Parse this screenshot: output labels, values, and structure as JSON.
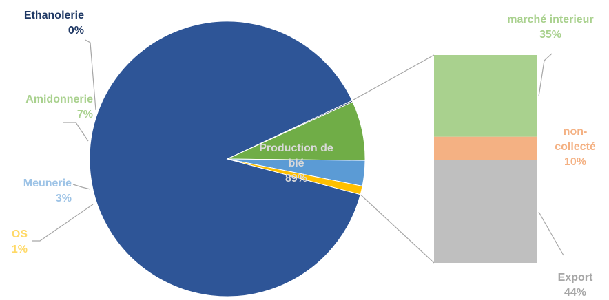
{
  "chart_data": {
    "type": "bar-of-pie",
    "title": "",
    "colors": {
      "pie_main": "#2E5597",
      "pie_main_label": "#D9D9D9",
      "leader": "#A6A6A6"
    },
    "pie": [
      {
        "label": "Production de blé",
        "label_lines": [
          "Production de",
          "blé"
        ],
        "pct_label": "89%",
        "value": 89,
        "color": "#2E5597",
        "label_color": "#D9D9D9"
      },
      {
        "label": "Ethanolerie",
        "label_lines": [
          "Ethanolerie"
        ],
        "pct_label": "0%",
        "value": 0.15,
        "color": "#1F3864",
        "label_color": "#1F3864"
      },
      {
        "label": "Amidonnerie",
        "label_lines": [
          "Amidonnerie"
        ],
        "pct_label": "7%",
        "value": 7,
        "color": "#70AD47",
        "label_color": "#A9D18E"
      },
      {
        "label": "Meunerie",
        "label_lines": [
          "Meunerie"
        ],
        "pct_label": "3%",
        "value": 3,
        "color": "#5B9BD5",
        "label_color": "#9DC3E6"
      },
      {
        "label": "OS",
        "label_lines": [
          "OS"
        ],
        "pct_label": "1%",
        "value": 1,
        "color": "#FFC000",
        "label_color": "#FFD966"
      }
    ],
    "bar": [
      {
        "label": "marché interieur",
        "label_lines": [
          "marché interieur"
        ],
        "pct_label": "35%",
        "value": 35,
        "color": "#A9D18E",
        "label_color": "#A9D18E"
      },
      {
        "label": "non-collecté",
        "label_lines": [
          "non-",
          "collecté"
        ],
        "pct_label": "10%",
        "value": 10,
        "color": "#F4B183",
        "label_color": "#F4B183"
      },
      {
        "label": "Export",
        "label_lines": [
          "Export"
        ],
        "pct_label": "44%",
        "value": 44,
        "color": "#BFBFBF",
        "label_color": "#A6A6A6"
      }
    ]
  }
}
